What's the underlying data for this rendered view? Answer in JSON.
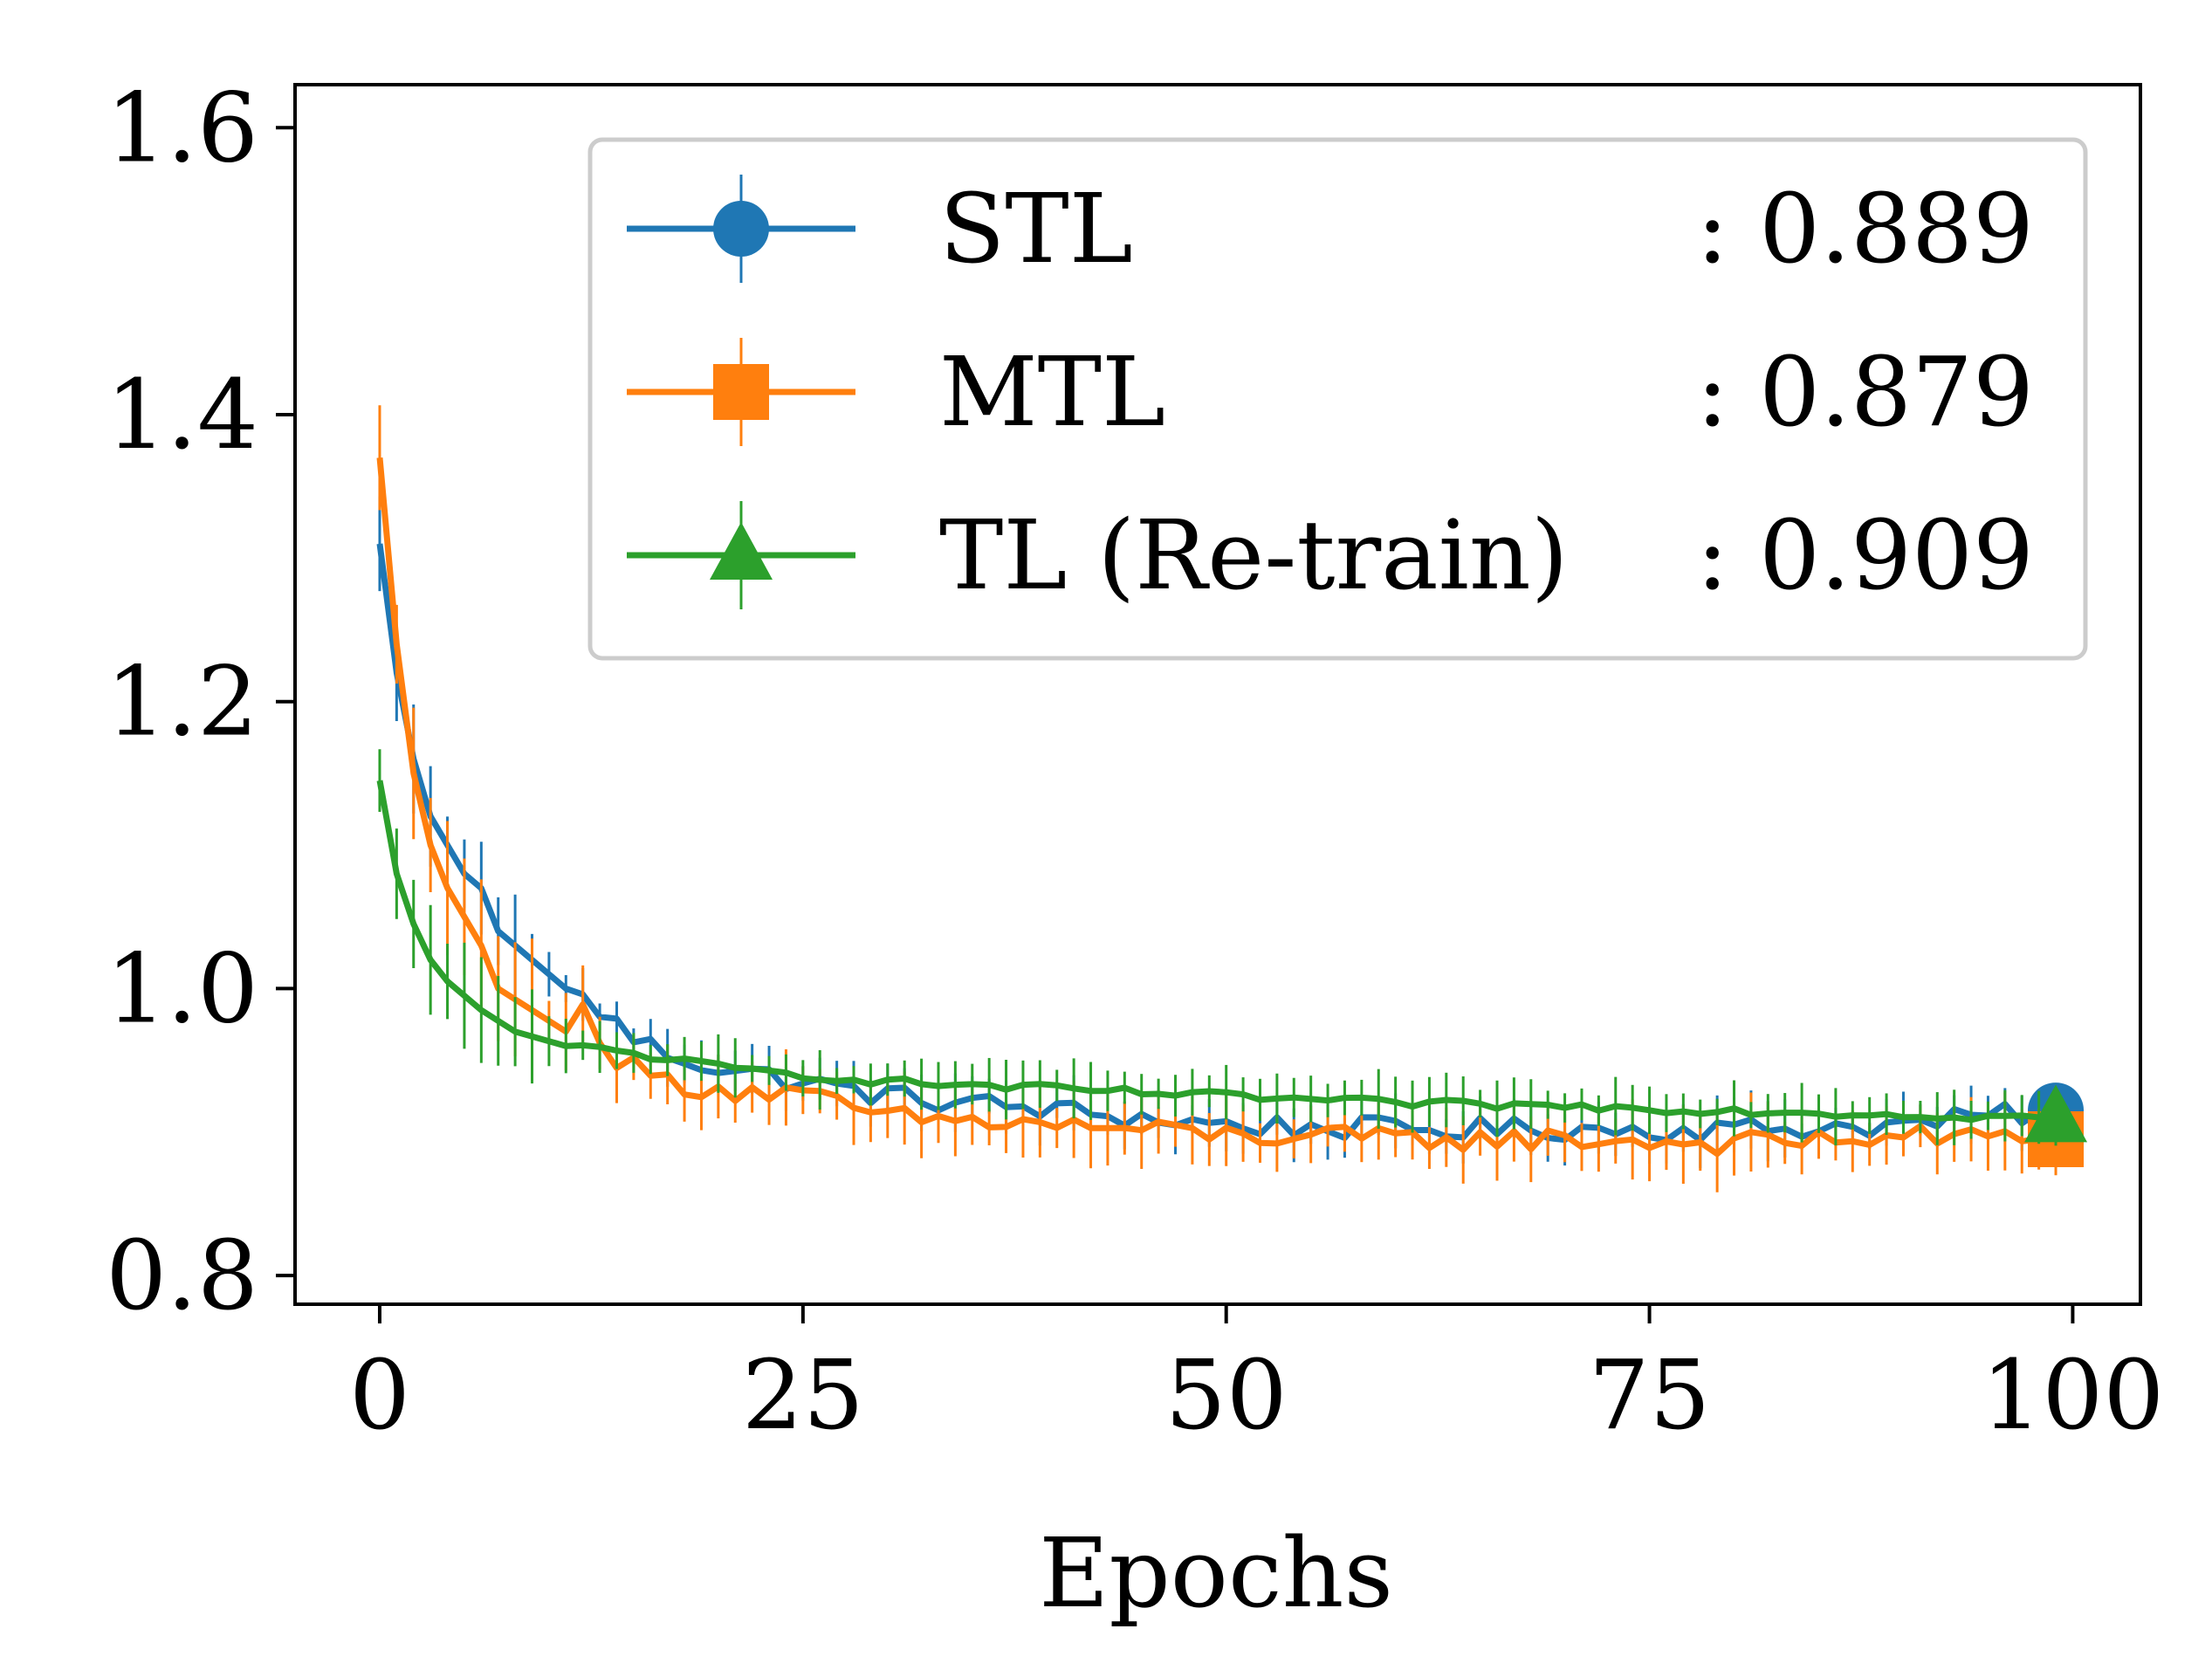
{
  "chart_data": {
    "type": "line",
    "title": "",
    "xlabel": "Epochs",
    "ylabel": "",
    "xlim": [
      -5,
      104
    ],
    "ylim": [
      0.78,
      1.63
    ],
    "xticks": [
      0,
      25,
      50,
      75,
      100
    ],
    "xtick_labels": [
      "0",
      "25",
      "50",
      "75",
      "100"
    ],
    "yticks": [
      0.8,
      1.0,
      1.2,
      1.4,
      1.6
    ],
    "ytick_labels": [
      "0.8",
      "1.0",
      "1.2",
      "1.4",
      "1.6"
    ],
    "grid": false,
    "legend_position": "top-right",
    "series": [
      {
        "name": "STL",
        "legend_label": "STL",
        "legend_value": ": 0.889",
        "color": "#1f77b4",
        "marker": "circle",
        "anchors": [
          [
            0,
            1.31
          ],
          [
            1,
            1.22
          ],
          [
            2,
            1.16
          ],
          [
            3,
            1.12
          ],
          [
            4,
            1.1
          ],
          [
            5,
            1.08
          ],
          [
            6,
            1.07
          ],
          [
            7,
            1.04
          ],
          [
            9,
            1.02
          ],
          [
            11,
            1.0
          ],
          [
            13,
            0.985
          ],
          [
            15,
            0.965
          ],
          [
            17,
            0.955
          ],
          [
            20,
            0.945
          ],
          [
            25,
            0.935
          ],
          [
            30,
            0.925
          ],
          [
            40,
            0.915
          ],
          [
            50,
            0.905
          ],
          [
            60,
            0.902
          ],
          [
            70,
            0.902
          ],
          [
            80,
            0.902
          ],
          [
            90,
            0.905
          ],
          [
            99,
            0.915
          ]
        ],
        "error": 0.015
      },
      {
        "name": "MTL",
        "legend_label": "MTL",
        "legend_value": ": 0.879",
        "color": "#ff7f0e",
        "marker": "square",
        "anchors": [
          [
            0,
            1.37
          ],
          [
            1,
            1.24
          ],
          [
            2,
            1.15
          ],
          [
            3,
            1.1
          ],
          [
            4,
            1.07
          ],
          [
            5,
            1.05
          ],
          [
            6,
            1.03
          ],
          [
            7,
            1.0
          ],
          [
            9,
            0.985
          ],
          [
            11,
            0.97
          ],
          [
            12,
            0.985
          ],
          [
            13,
            0.97
          ],
          [
            14,
            0.95
          ],
          [
            17,
            0.935
          ],
          [
            20,
            0.93
          ],
          [
            25,
            0.925
          ],
          [
            30,
            0.91
          ],
          [
            40,
            0.905
          ],
          [
            50,
            0.898
          ],
          [
            60,
            0.895
          ],
          [
            70,
            0.895
          ],
          [
            80,
            0.892
          ],
          [
            90,
            0.897
          ],
          [
            99,
            0.895
          ]
        ],
        "error": 0.02
      },
      {
        "name": "TL (Re-train)",
        "legend_label": "TL (Re-train)",
        "legend_value": ": 0.909",
        "color": "#2ca02c",
        "marker": "triangle",
        "anchors": [
          [
            0,
            1.145
          ],
          [
            1,
            1.08
          ],
          [
            2,
            1.045
          ],
          [
            3,
            1.02
          ],
          [
            4,
            1.005
          ],
          [
            6,
            0.985
          ],
          [
            8,
            0.97
          ],
          [
            11,
            0.96
          ],
          [
            15,
            0.955
          ],
          [
            20,
            0.945
          ],
          [
            25,
            0.94
          ],
          [
            30,
            0.935
          ],
          [
            40,
            0.93
          ],
          [
            50,
            0.925
          ],
          [
            60,
            0.92
          ],
          [
            70,
            0.918
          ],
          [
            80,
            0.915
          ],
          [
            90,
            0.912
          ],
          [
            99,
            0.91
          ]
        ],
        "error": 0.015
      }
    ]
  }
}
